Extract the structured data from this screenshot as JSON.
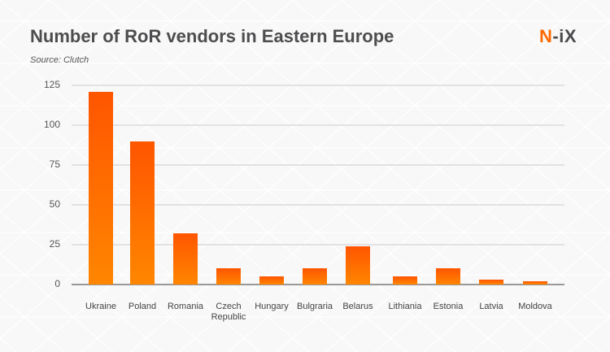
{
  "header": {
    "title": "Number of RoR vendors in Eastern Europe",
    "source": "Source: Clutch",
    "logo_n": "N",
    "logo_rest": "-iX"
  },
  "colors": {
    "bar_top": "#ff5500",
    "bar_bottom": "#ff8600",
    "brand": "#ff6a00",
    "title": "#4d4d4f"
  },
  "chart_data": {
    "type": "bar",
    "title": "Number of RoR vendors in Eastern Europe",
    "subtitle": "Source: Clutch",
    "xlabel": "",
    "ylabel": "",
    "categories": [
      "Ukraine",
      "Poland",
      "Romania",
      "Czech Republic",
      "Hungary",
      "Bulgraria",
      "Belarus",
      "Lithiania",
      "Estonia",
      "Latvia",
      "Moldova"
    ],
    "values": [
      121,
      90,
      32,
      10,
      5,
      10,
      24,
      5,
      10,
      3,
      2
    ],
    "ylim": [
      0,
      125
    ],
    "yticks": [
      "0",
      "25",
      "50",
      "75",
      "100",
      "125"
    ],
    "grid": true,
    "legend": "none"
  },
  "xlabels": [
    {
      "l1": "Ukraine",
      "l2": ""
    },
    {
      "l1": "Poland",
      "l2": ""
    },
    {
      "l1": "Romania",
      "l2": ""
    },
    {
      "l1": "Czech",
      "l2": "Republic"
    },
    {
      "l1": "Hungary",
      "l2": ""
    },
    {
      "l1": "Bulgraria",
      "l2": ""
    },
    {
      "l1": "Belarus",
      "l2": ""
    },
    {
      "l1": "Lithiania",
      "l2": ""
    },
    {
      "l1": "Estonia",
      "l2": ""
    },
    {
      "l1": "Latvia",
      "l2": ""
    },
    {
      "l1": "Moldova",
      "l2": ""
    }
  ]
}
